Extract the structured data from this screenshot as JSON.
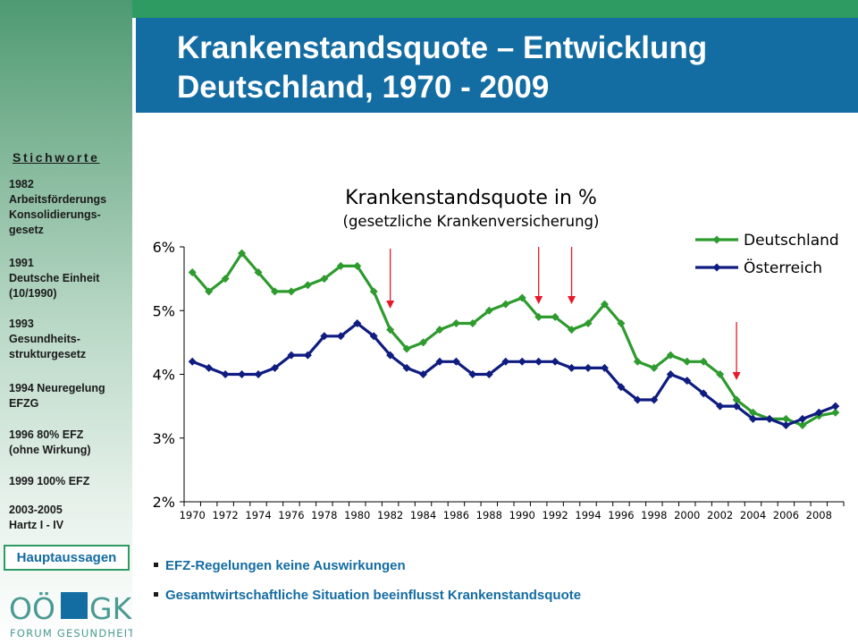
{
  "title": {
    "line1": "Krankenstandsquote – Entwicklung",
    "line2": "Deutschland, 1970 - 2009"
  },
  "sidebar": {
    "heading": "Stichworte",
    "keywords": [
      [
        "1982",
        "Arbeitsförderungs",
        "Konsolidierungs-",
        "gesetz"
      ],
      [
        "1991",
        "Deutsche Einheit",
        "(10/1990)"
      ],
      [
        "1993",
        "Gesundheits-",
        "strukturgesetz"
      ],
      [
        "1994 Neuregelung",
        "EFZG"
      ],
      [
        "1996 80% EFZ",
        "(ohne Wirkung)"
      ],
      [
        "1999 100% EFZ"
      ],
      [
        "2003-2005",
        "Hartz I - IV"
      ]
    ],
    "button_label": "Hauptaussagen",
    "logo_top": "OÖ GKK",
    "logo_bottom": "FORUM GESUNDHEIT"
  },
  "bullets": [
    "EFZ-Regelungen keine Auswirkungen",
    "Gesamtwirtschaftliche Situation beeinflusst Krankenstandsquote"
  ],
  "colors": {
    "title_bar": "#136ca2",
    "top_bar": "#2e9b63",
    "deutschland": "#2e9b2e",
    "oesterreich": "#0f1c80",
    "arrows": "#e8182b"
  },
  "chart_data": {
    "type": "line",
    "title": "Krankenstandsquote in %",
    "subtitle": "(gesetzliche Krankenversicherung)",
    "xlabel": "",
    "ylabel": "",
    "x": [
      1970,
      1971,
      1972,
      1973,
      1974,
      1975,
      1976,
      1977,
      1978,
      1979,
      1980,
      1981,
      1982,
      1983,
      1984,
      1985,
      1986,
      1987,
      1988,
      1989,
      1990,
      1991,
      1992,
      1993,
      1994,
      1995,
      1996,
      1997,
      1998,
      1999,
      2000,
      2001,
      2002,
      2003,
      2004,
      2005,
      2006,
      2007,
      2008,
      2009
    ],
    "x_tick_labels": [
      "1970",
      "1972",
      "1974",
      "1976",
      "1978",
      "1980",
      "1982",
      "1984",
      "1986",
      "1988",
      "1990",
      "1992",
      "1994",
      "1996",
      "1998",
      "2000",
      "2002",
      "2004",
      "2006",
      "2008"
    ],
    "y_tick_labels": [
      "2%",
      "3%",
      "4%",
      "5%",
      "6%"
    ],
    "ylim": [
      2,
      6
    ],
    "y_unit": "%",
    "grid": false,
    "legend_position": "top-right",
    "series": [
      {
        "name": "Deutschland",
        "color": "#2e9b2e",
        "values": [
          5.6,
          5.3,
          5.5,
          5.9,
          5.6,
          5.3,
          5.3,
          5.4,
          5.5,
          5.7,
          5.7,
          5.3,
          4.7,
          4.4,
          4.5,
          4.7,
          4.8,
          4.8,
          5.0,
          5.1,
          5.2,
          4.9,
          4.9,
          4.7,
          4.8,
          5.1,
          4.8,
          4.2,
          4.1,
          4.3,
          4.2,
          4.2,
          4.0,
          3.6,
          3.4,
          3.3,
          3.3,
          3.2,
          3.35,
          3.4
        ]
      },
      {
        "name": "Österreich",
        "color": "#0f1c80",
        "values": [
          4.2,
          4.1,
          4.0,
          4.0,
          4.0,
          4.1,
          4.3,
          4.3,
          4.6,
          4.6,
          4.8,
          4.6,
          4.3,
          4.1,
          4.0,
          4.2,
          4.2,
          4.0,
          4.0,
          4.2,
          4.2,
          4.2,
          4.2,
          4.1,
          4.1,
          4.1,
          3.8,
          3.6,
          3.6,
          4.0,
          3.9,
          3.7,
          3.5,
          3.5,
          3.3,
          3.3,
          3.2,
          3.3,
          3.4,
          3.5
        ]
      }
    ],
    "annotations": [
      {
        "type": "arrow-down",
        "x": 1982
      },
      {
        "type": "arrow-down",
        "x": 1991
      },
      {
        "type": "arrow-down",
        "x": 1993
      },
      {
        "type": "arrow-down",
        "x": 2003
      }
    ]
  }
}
